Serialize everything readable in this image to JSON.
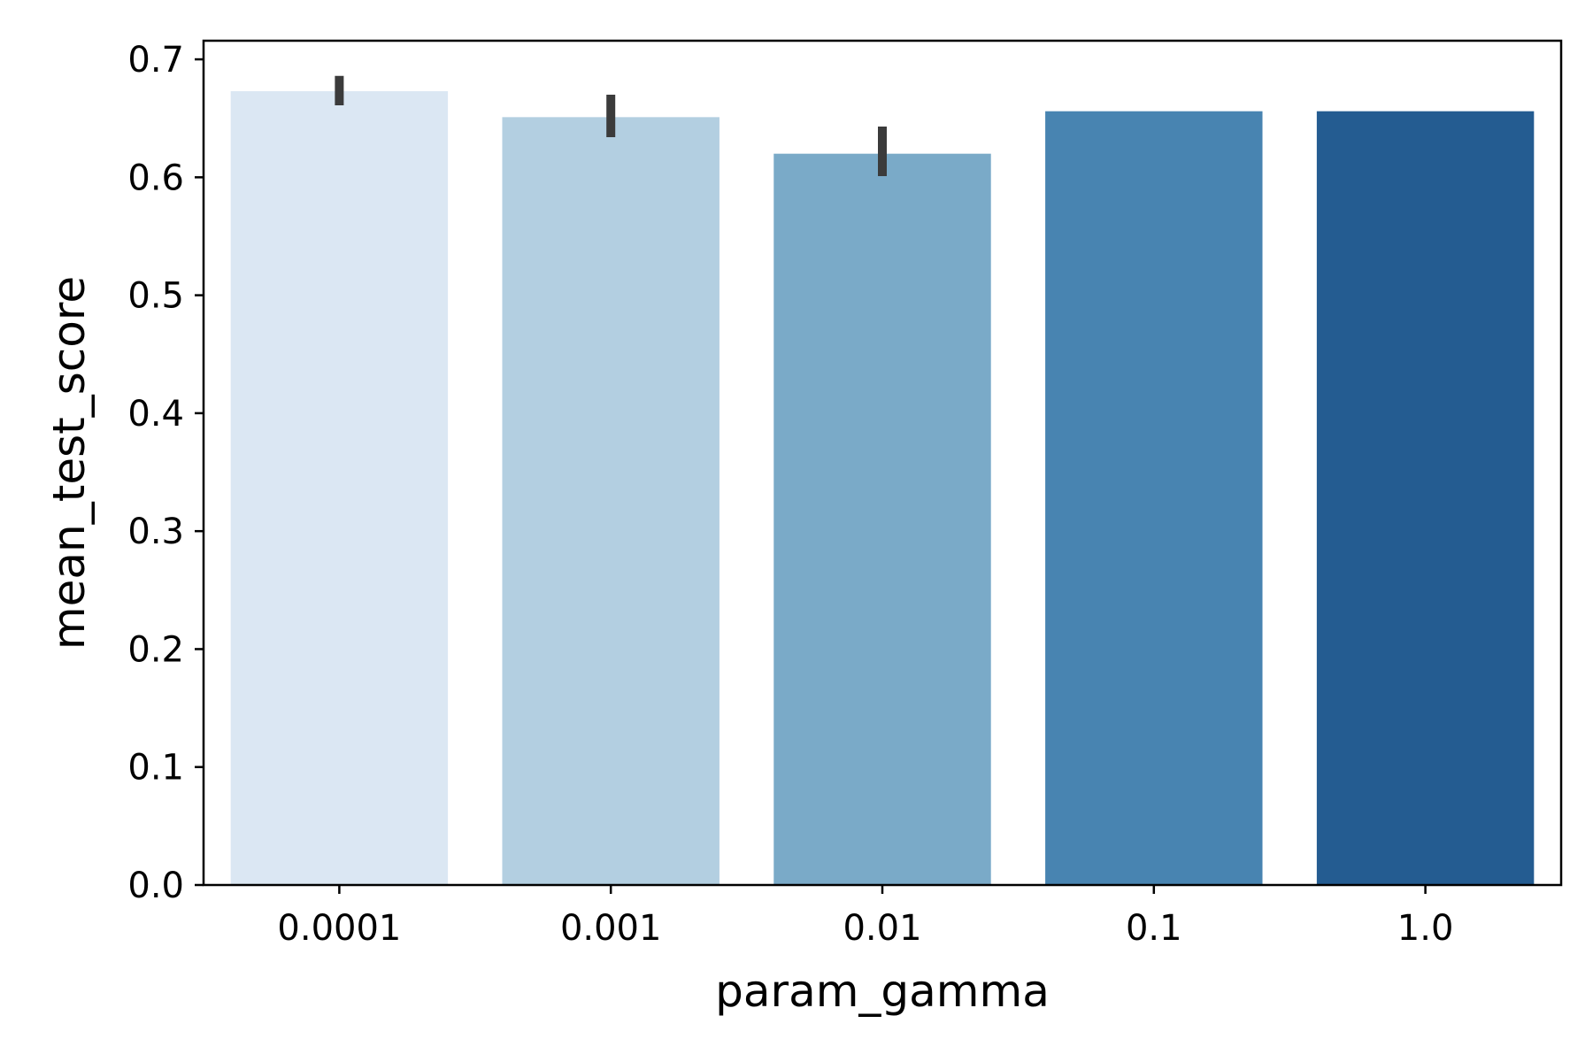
{
  "chart_data": {
    "type": "bar",
    "title": "",
    "xlabel": "param_gamma",
    "ylabel": "mean_test_score",
    "categories": [
      "0.0001",
      "0.001",
      "0.01",
      "0.1",
      "1.0"
    ],
    "values": [
      0.673,
      0.651,
      0.62,
      0.656,
      0.656
    ],
    "error_low": [
      0.661,
      0.634,
      0.601,
      0.656,
      0.656
    ],
    "error_high": [
      0.686,
      0.67,
      0.643,
      0.656,
      0.656
    ],
    "ylim": [
      0,
      0.7158
    ],
    "yticks": [
      "0.0",
      "0.1",
      "0.2",
      "0.3",
      "0.4",
      "0.5",
      "0.6",
      "0.7"
    ],
    "grid": false,
    "colors": [
      "#dbe7f3",
      "#b3cfe1",
      "#7aaac8",
      "#4884b1",
      "#245c91"
    ],
    "error_color": "#3b3b3b"
  }
}
